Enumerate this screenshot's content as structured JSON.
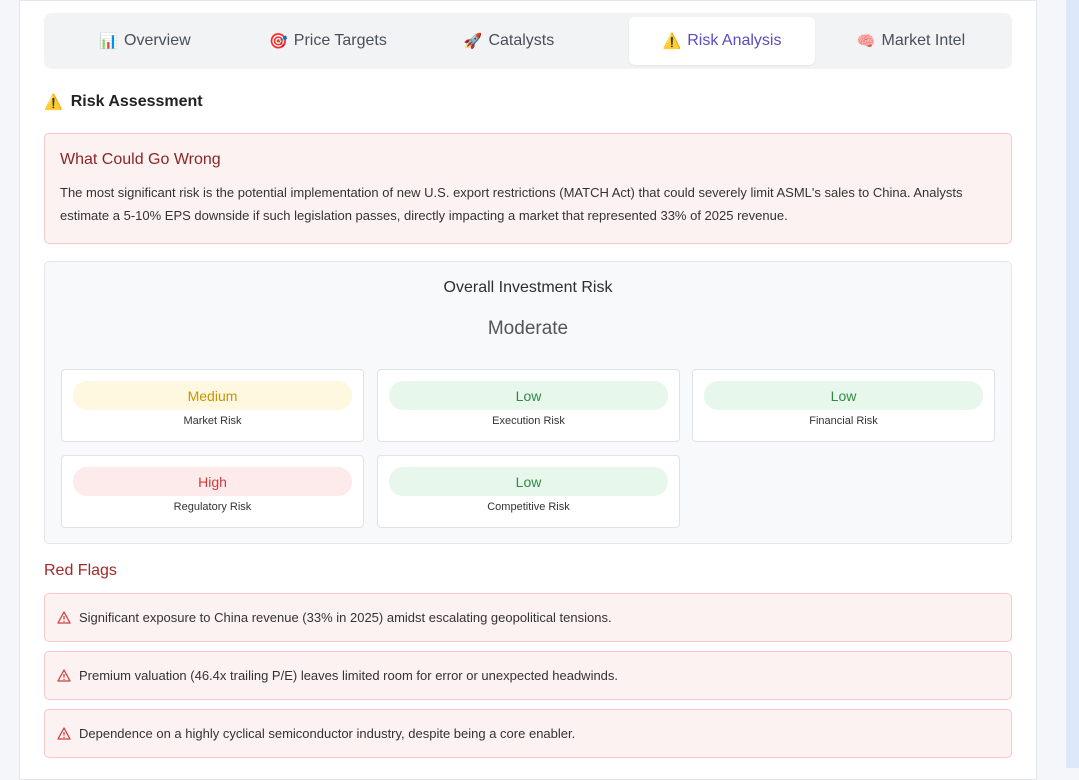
{
  "tabs": [
    {
      "icon": "📊",
      "label": "Overview"
    },
    {
      "icon": "🎯",
      "label": "Price Targets"
    },
    {
      "icon": "🚀",
      "label": "Catalysts"
    },
    {
      "icon": "⚠️",
      "label": "Risk Analysis",
      "active": true
    },
    {
      "icon": "🧠",
      "label": "Market Intel"
    }
  ],
  "section": {
    "icon": "⚠️",
    "title": "Risk Assessment"
  },
  "warning": {
    "title": "What Could Go Wrong",
    "text": "The most significant risk is the potential implementation of new U.S. export restrictions (MATCH Act) that could severely limit ASML's sales to China. Analysts estimate a 5-10% EPS downside if such legislation passes, directly impacting a market that represented 33% of 2025 revenue."
  },
  "overall": {
    "title": "Overall Investment Risk",
    "level": "Moderate",
    "risks": [
      {
        "level": "Medium",
        "label": "Market Risk"
      },
      {
        "level": "Low",
        "label": "Execution Risk"
      },
      {
        "level": "Low",
        "label": "Financial Risk"
      },
      {
        "level": "High",
        "label": "Regulatory Risk"
      },
      {
        "level": "Low",
        "label": "Competitive Risk"
      }
    ]
  },
  "red_flags": {
    "title": "Red Flags",
    "items": [
      "Significant exposure to China revenue (33% in 2025) amidst escalating geopolitical tensions.",
      "Premium valuation (46.4x trailing P/E) leaves limited room for error or unexpected headwinds.",
      "Dependence on a highly cyclical semiconductor industry, despite being a core enabler."
    ]
  }
}
